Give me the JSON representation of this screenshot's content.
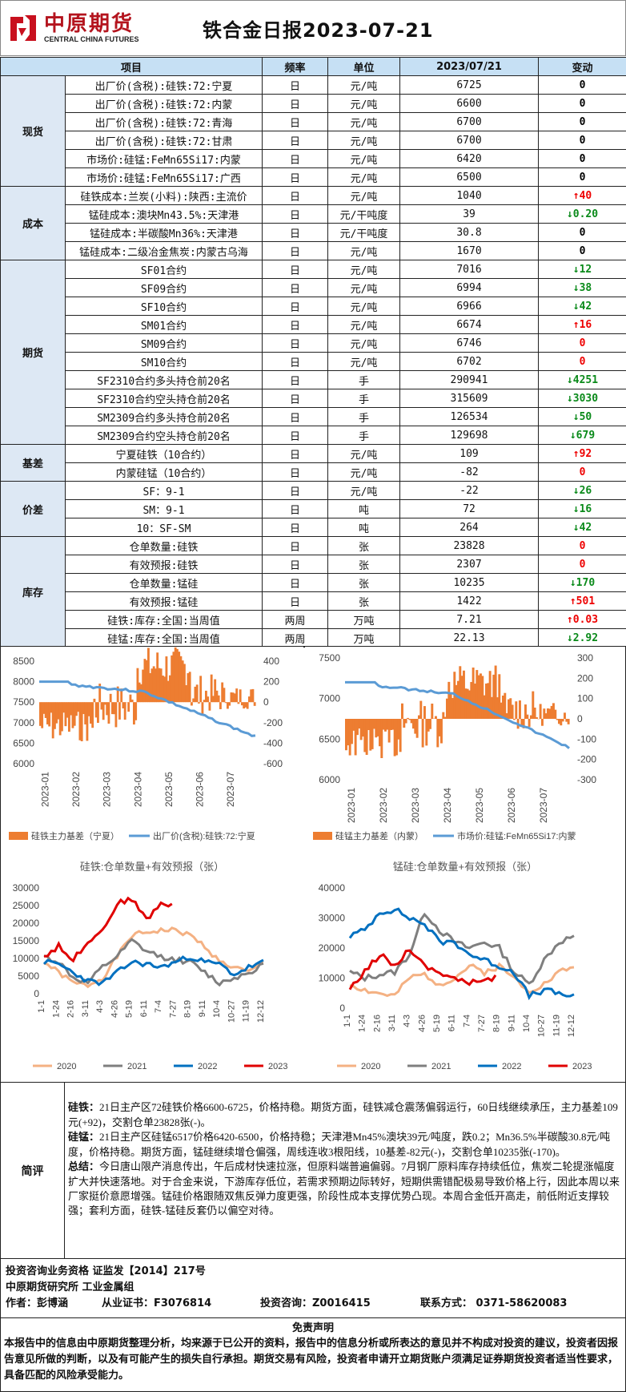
{
  "header": {
    "logo_cn": "中原期货",
    "logo_en": "CENTRAL CHINA FUTURES",
    "title": "铁合金日报2023-07-21"
  },
  "table": {
    "headers": [
      "项目",
      "频率",
      "单位",
      "2023/07/21",
      "变动"
    ],
    "groups": [
      {
        "name": "现货",
        "rows": [
          [
            "出厂价(含税):硅铁:72:宁夏",
            "日",
            "元/吨",
            "6725",
            "0",
            "zero"
          ],
          [
            "出厂价(含税):硅铁:72:内蒙",
            "日",
            "元/吨",
            "6600",
            "0",
            "zero"
          ],
          [
            "出厂价(含税):硅铁:72:青海",
            "日",
            "元/吨",
            "6700",
            "0",
            "zero"
          ],
          [
            "出厂价(含税):硅铁:72:甘肃",
            "日",
            "元/吨",
            "6700",
            "0",
            "zero"
          ],
          [
            "市场价:硅锰:FeMn65Si17:内蒙",
            "日",
            "元/吨",
            "6420",
            "0",
            "zero"
          ],
          [
            "市场价:硅锰:FeMn65Si17:广西",
            "日",
            "元/吨",
            "6500",
            "0",
            "zero"
          ]
        ]
      },
      {
        "name": "成本",
        "rows": [
          [
            "硅铁成本:兰炭(小料):陕西:主流价",
            "日",
            "元/吨",
            "1040",
            "↑40",
            "up"
          ],
          [
            "锰硅成本:澳块Mn43.5%:天津港",
            "日",
            "元/干吨度",
            "39",
            "↓0.20",
            "dn"
          ],
          [
            "锰硅成本:半碳酸Mn36%:天津港",
            "日",
            "元/干吨度",
            "30.8",
            "0",
            "zero"
          ],
          [
            "锰硅成本:二级冶金焦炭:内蒙古乌海",
            "日",
            "元/吨",
            "1670",
            "0",
            "zero"
          ]
        ]
      },
      {
        "name": "期货",
        "rows": [
          [
            "SF01合约",
            "日",
            "元/吨",
            "7016",
            "↓12",
            "dn"
          ],
          [
            "SF09合约",
            "日",
            "元/吨",
            "6994",
            "↓38",
            "dn"
          ],
          [
            "SF10合约",
            "日",
            "元/吨",
            "6966",
            "↓42",
            "dn"
          ],
          [
            "SM01合约",
            "日",
            "元/吨",
            "6674",
            "↑16",
            "up"
          ],
          [
            "SM09合约",
            "日",
            "元/吨",
            "6746",
            "0",
            "zr"
          ],
          [
            "SM10合约",
            "日",
            "元/吨",
            "6702",
            "0",
            "zr"
          ],
          [
            "SF2310合约多头持仓前20名",
            "日",
            "手",
            "290941",
            "↓4251",
            "dn"
          ],
          [
            "SF2310合约空头持仓前20名",
            "日",
            "手",
            "315609",
            "↓3030",
            "dn"
          ],
          [
            "SM2309合约多头持仓前20名",
            "日",
            "手",
            "126534",
            "↓50",
            "dn"
          ],
          [
            "SM2309合约空头持仓前20名",
            "日",
            "手",
            "129698",
            "↓679",
            "dn"
          ]
        ]
      },
      {
        "name": "基差",
        "rows": [
          [
            "宁夏硅铁（10合约）",
            "日",
            "元/吨",
            "109",
            "↑92",
            "up"
          ],
          [
            "内蒙硅锰（10合约）",
            "日",
            "元/吨",
            "-82",
            "0",
            "zr"
          ]
        ]
      },
      {
        "name": "价差",
        "rows": [
          [
            "SF：9-1",
            "日",
            "元/吨",
            "-22",
            "↓26",
            "dn"
          ],
          [
            "SM：9-1",
            "日",
            "吨",
            "72",
            "↓16",
            "dn"
          ],
          [
            "10：SF-SM",
            "日",
            "吨",
            "264",
            "↓42",
            "dn"
          ]
        ]
      },
      {
        "name": "库存",
        "rows": [
          [
            "仓单数量:硅铁",
            "日",
            "张",
            "23828",
            "0",
            "zr"
          ],
          [
            "有效预报:硅铁",
            "日",
            "张",
            "2307",
            "0",
            "zr"
          ],
          [
            "仓单数量:锰硅",
            "日",
            "张",
            "10235",
            "↓170",
            "dn"
          ],
          [
            "有效预报:锰硅",
            "日",
            "张",
            "1422",
            "↑501",
            "up"
          ],
          [
            "硅铁:库存:全国:当周值",
            "两周",
            "万吨",
            "7.21",
            "↑0.03",
            "up"
          ],
          [
            "硅锰:库存:全国:当周值",
            "两周",
            "万吨",
            "22.13",
            "↓2.92",
            "dn"
          ]
        ]
      }
    ]
  },
  "charts": {
    "c1": {
      "yl_ticks": [
        "8500",
        "8000",
        "7500",
        "7000",
        "6500",
        "6000"
      ],
      "yr_ticks": [
        "400",
        "200",
        "0",
        "-200",
        "-400",
        "-600"
      ],
      "x_ticks": [
        "2023-01",
        "2023-02",
        "2023-03",
        "2023-04",
        "2023-05",
        "2023-06",
        "2023-07"
      ],
      "legend_bar": "硅铁主力基差（宁夏）",
      "legend_line": "出厂价(含税):硅铁:72:宁夏",
      "bar_color": "#ed7d31",
      "line_color": "#5b9bd5"
    },
    "c2": {
      "yl_ticks": [
        "7500",
        "7000",
        "6500",
        "6000"
      ],
      "yr_ticks": [
        "300",
        "200",
        "100",
        "0",
        "-100",
        "-200",
        "-300"
      ],
      "x_ticks": [
        "2023-01",
        "2023-02",
        "2023-03",
        "2023-04",
        "2023-05",
        "2023-06",
        "2023-07"
      ],
      "legend_bar": "硅锰主力基差（内蒙）",
      "legend_line": "市场价:硅锰:FeMn65Si17:内蒙",
      "bar_color": "#ed7d31",
      "line_color": "#5b9bd5"
    },
    "c3": {
      "title": "硅铁:仓单数量+有效预报（张）",
      "y_ticks": [
        "30000",
        "25000",
        "20000",
        "15000",
        "10000",
        "5000",
        "0"
      ],
      "x_ticks": [
        "1-1",
        "1-24",
        "2-16",
        "3-11",
        "4-3",
        "4-26",
        "5-19",
        "6-11",
        "7-4",
        "7-27",
        "8-19",
        "9-11",
        "10-4",
        "10-27",
        "11-19",
        "12-12"
      ],
      "legend": [
        "2020",
        "2021",
        "2022",
        "2023"
      ],
      "colors": [
        "#f4b183",
        "#7f7f7f",
        "#0070c0",
        "#e00000"
      ]
    },
    "c4": {
      "title": "锰硅:仓单数量+有效预报（张）",
      "y_ticks": [
        "40000",
        "30000",
        "20000",
        "10000",
        "0"
      ],
      "x_ticks": [
        "1-1",
        "1-24",
        "2-16",
        "3-11",
        "4-3",
        "4-26",
        "5-19",
        "6-11",
        "7-4",
        "7-27",
        "8-19",
        "9-11",
        "10-4",
        "10-27",
        "11-19",
        "12-12"
      ],
      "legend": [
        "2020",
        "2021",
        "2022",
        "2023"
      ],
      "colors": [
        "#f4b183",
        "#7f7f7f",
        "#0070c0",
        "#e00000"
      ]
    }
  },
  "comment": {
    "label": "简评",
    "p1_head": "硅铁：",
    "p1": "21日主产区72硅铁价格6600-6725，价格持稳。期货方面，硅铁减仓震荡偏弱运行，60日线继续承压，主力基差109元(+92)，交割仓单23828张(-)。",
    "p2_head": "硅锰：",
    "p2": "21日主产区硅锰6517价格6420-6500，价格持稳；天津港Mn45%澳块39元/吨度，跌0.2；Mn36.5%半碳酸30.8元/吨度，价格持稳。期货方面，锰硅继续增仓偏强，周线连收3根阳线，10基差-82元(-)，交割仓单10235张(-170)。",
    "p3_head": "总结：",
    "p3": "今日唐山限产消息传出，午后成材快速拉涨，但原料端普遍偏弱。7月钢厂原料库存持续低位，焦炭二轮提涨幅度扩大并快速落地。对于合金来说，下游库存低位，若需求预期边际转好，短期供需错配极易导致价格上行，因此本周以来厂家挺价意愿增强。锰硅价格跟随双焦反弹力度更强，阶段性成本支撑优势凸现。本周合金低开高走，前低附近支撑较强；套利方面，硅铁-锰硅反套仍以偏空对待。"
  },
  "footer": {
    "line1": "投资咨询业务资格   证监发【2014】217号",
    "line2": "中原期货研究所    工业金属组",
    "author_label": "作者：彭博涵",
    "cert": "从业证书：F3076814",
    "consult": "投资咨询：Z0016415",
    "contact": "联系方式：  0371-58620083"
  },
  "disclaimer": {
    "title": "免责声明",
    "body": "本报告中的信息由中原期货整理分析，均来源于已公开的资料，报告中的信息分析或所表达的意见并不构成对投资的建议，投资者因报告意见所做的判断，以及有可能产生的损失自行承担。期货交易有风险，投资者申请开立期货账户须满足证券期货投资者适当性要求，具备匹配的风险承受能力。"
  }
}
